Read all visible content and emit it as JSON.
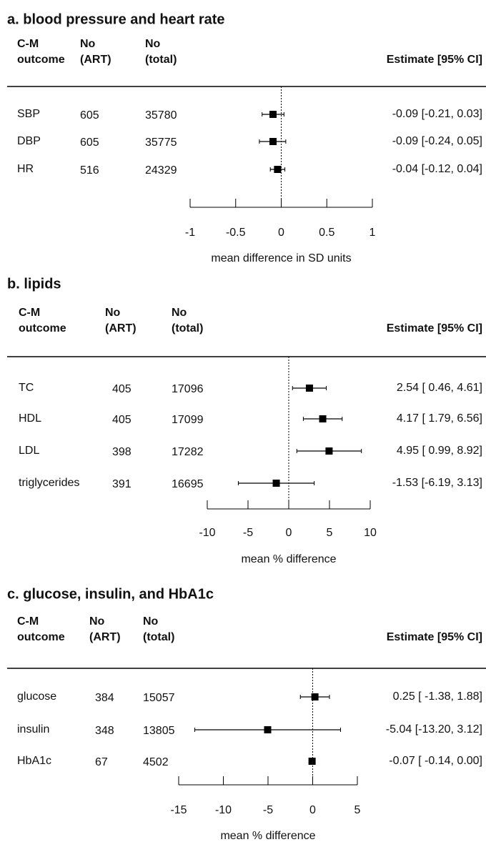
{
  "chart_data": [
    {
      "type": "forest",
      "title": "a. blood pressure and heart rate",
      "column_headers": [
        [
          "C-M",
          "outcome"
        ],
        [
          "No",
          "(ART)"
        ],
        [
          "No",
          "(total)"
        ]
      ],
      "estimate_header": "Estimate [95% CI]",
      "categories": [
        "SBP",
        "DBP",
        "HR"
      ],
      "n_art": [
        605,
        605,
        516
      ],
      "n_total": [
        35780,
        35775,
        24329
      ],
      "values": [
        -0.09,
        -0.09,
        -0.04
      ],
      "lower": [
        -0.21,
        -0.24,
        -0.12
      ],
      "upper": [
        0.03,
        0.05,
        0.04
      ],
      "value_labels": [
        "-0.09 [-0.21, 0.03]",
        "-0.09 [-0.24, 0.05]",
        "-0.04 [-0.12, 0.04]"
      ],
      "xlim": [
        -1,
        1
      ],
      "xticks": [
        -1,
        -0.5,
        0,
        0.5,
        1
      ],
      "reference_line": 0,
      "xlabel": "mean difference in SD units",
      "color": "#000000"
    },
    {
      "type": "forest",
      "title": "b. lipids",
      "column_headers": [
        [
          "C-M",
          "outcome"
        ],
        [
          "No",
          "(ART)"
        ],
        [
          "No",
          "(total)"
        ]
      ],
      "estimate_header": "Estimate [95% CI]",
      "categories": [
        "TC",
        "HDL",
        "LDL",
        "triglycerides"
      ],
      "n_art": [
        405,
        405,
        398,
        391
      ],
      "n_total": [
        17096,
        17099,
        17282,
        16695
      ],
      "values": [
        2.54,
        4.17,
        4.95,
        -1.53
      ],
      "lower": [
        0.46,
        1.79,
        0.99,
        -6.19
      ],
      "upper": [
        4.61,
        6.56,
        8.92,
        3.13
      ],
      "value_labels": [
        "2.54 [ 0.46, 4.61]",
        "4.17 [ 1.79, 6.56]",
        "4.95 [ 0.99, 8.92]",
        "-1.53 [-6.19, 3.13]"
      ],
      "xlim": [
        -10,
        10
      ],
      "xticks": [
        -10,
        -5,
        0,
        5,
        10
      ],
      "reference_line": 0,
      "xlabel": "mean % difference",
      "color": "#000000"
    },
    {
      "type": "forest",
      "title": "c. glucose, insulin, and HbA1c",
      "column_headers": [
        [
          "C-M",
          "outcome"
        ],
        [
          "No",
          "(ART)"
        ],
        [
          "No",
          "(total)"
        ]
      ],
      "estimate_header": "Estimate [95% CI]",
      "categories": [
        "glucose",
        "insulin",
        "HbA1c"
      ],
      "n_art": [
        384,
        348,
        67
      ],
      "n_total": [
        15057,
        13805,
        4502
      ],
      "values": [
        0.25,
        -5.04,
        -0.07
      ],
      "lower": [
        -1.38,
        -13.2,
        -0.14
      ],
      "upper": [
        1.88,
        3.12,
        0
      ],
      "value_labels": [
        "0.25 [ -1.38, 1.88]",
        "-5.04 [-13.20, 3.12]",
        "-0.07 [ -0.14, 0.00]"
      ],
      "xlim": [
        -15,
        5
      ],
      "xticks": [
        -15,
        -10,
        -5,
        0,
        5
      ],
      "reference_line": 0,
      "xlabel": "mean % difference",
      "color": "#000000"
    }
  ]
}
